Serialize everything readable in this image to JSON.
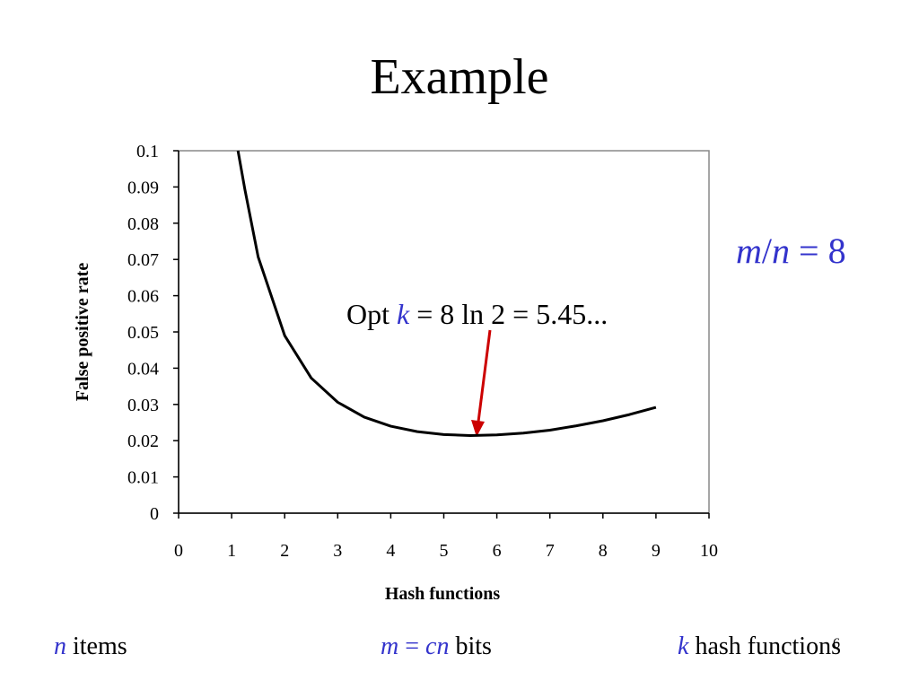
{
  "chart_data": {
    "type": "line",
    "title": "Example",
    "x": [
      1.12,
      1.25,
      1.5,
      2,
      2.5,
      3,
      3.5,
      4,
      4.5,
      5,
      5.5,
      6,
      6.5,
      7,
      7.5,
      8,
      8.5,
      9
    ],
    "series": [
      {
        "color": "#000000",
        "values": [
          0.1,
          0.0893,
          0.0707,
          0.049,
          0.0373,
          0.0306,
          0.0265,
          0.024,
          0.0225,
          0.0217,
          0.0214,
          0.0216,
          0.0221,
          0.0229,
          0.0241,
          0.0255,
          0.0272,
          0.0292
        ]
      }
    ],
    "xlabel": "Hash functions",
    "ylabel": "False positive rate",
    "xlim": [
      0,
      10
    ],
    "ylim": [
      0,
      0.1
    ],
    "xticks": [
      0,
      1,
      2,
      3,
      4,
      5,
      6,
      7,
      8,
      9,
      10
    ],
    "yticks": [
      0,
      0.01,
      0.02,
      0.03,
      0.04,
      0.05,
      0.06,
      0.07,
      0.08,
      0.09,
      0.1
    ]
  },
  "annotation": [
    "Opt ",
    "k",
    " = 8 ln 2 = 5.45..."
  ],
  "ratio": [
    "m",
    "/",
    "n",
    " = 8"
  ],
  "footer": {
    "left": [
      "n",
      " items"
    ],
    "center": [
      "m",
      " = ",
      "cn",
      " bits"
    ],
    "right": [
      "k",
      " hash functions"
    ]
  },
  "page_number": "6"
}
